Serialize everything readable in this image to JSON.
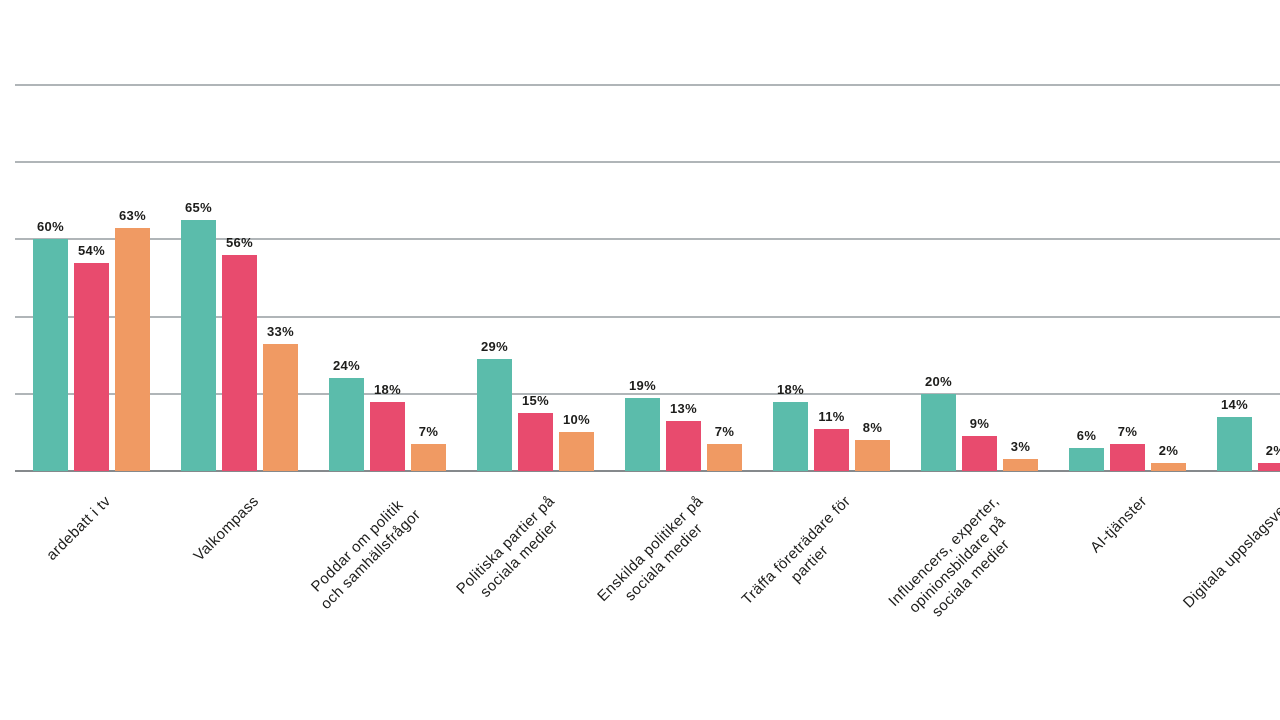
{
  "page": {
    "background": "#ffffff"
  },
  "chart_data": {
    "type": "bar",
    "title": "",
    "xlabel": "",
    "ylabel": "",
    "ylim": [
      0,
      100
    ],
    "gridline_step": 20,
    "grid": true,
    "legend": null,
    "value_suffix": "%",
    "xlabel_rotation_deg": -45,
    "categories": [
      {
        "label": "ardebatt i tv",
        "lines": [
          "ardebatt i tv"
        ],
        "truncated_left_edge": true
      },
      {
        "label": "Valkompass",
        "lines": [
          "Valkompass"
        ]
      },
      {
        "label": "Poddar om politik och samhällsfrågor",
        "lines": [
          "Poddar om politik",
          "och samhällsfrågor"
        ]
      },
      {
        "label": "Politiska partier på sociala medier",
        "lines": [
          "Politiska partier på",
          "sociala medier"
        ]
      },
      {
        "label": "Enskilda politiker på sociala medier",
        "lines": [
          "Enskilda politiker på",
          "sociala medier"
        ]
      },
      {
        "label": "Träffa företrädare för partier",
        "lines": [
          "Träffa företrädare för",
          "partier"
        ]
      },
      {
        "label": "Influencers, experter, opinionsbildare på sociala medier",
        "lines": [
          "Influencers, experter,",
          "opinionsbildare på",
          "sociala medier"
        ]
      },
      {
        "label": "AI-tjänster",
        "lines": [
          "AI-tjänster"
        ]
      },
      {
        "label": "Digitala uppslagsverk",
        "lines": [
          "Digitala uppslagsverk"
        ],
        "truncated_right_edge": true
      }
    ],
    "series": [
      {
        "name": "series-teal",
        "color": "#5bbcab",
        "values": [
          60,
          65,
          24,
          29,
          19,
          18,
          20,
          6,
          14
        ]
      },
      {
        "name": "series-pink",
        "color": "#e84b6e",
        "values": [
          54,
          56,
          18,
          15,
          13,
          11,
          9,
          7,
          2
        ]
      },
      {
        "name": "series-orange",
        "color": "#f09a63",
        "values": [
          63,
          33,
          7,
          10,
          7,
          8,
          3,
          2,
          null
        ]
      }
    ],
    "colors": {
      "gridline": "#b0b5b8",
      "axis_line": "#85898c",
      "label_text": "#1d1d1b"
    }
  }
}
